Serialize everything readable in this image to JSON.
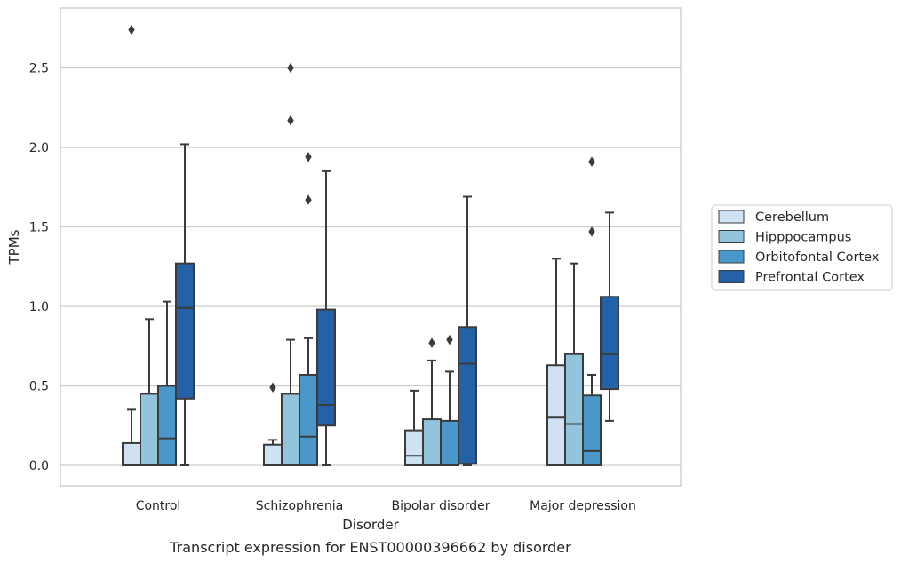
{
  "chart_data": {
    "type": "box",
    "caption": "Transcript expression for ENST00000396662 by disorder",
    "xlabel": "Disorder",
    "ylabel": "TPMs",
    "ylim": [
      -0.13,
      2.88
    ],
    "yticks": [
      "0.0",
      "0.5",
      "1.0",
      "1.5",
      "2.0",
      "2.5"
    ],
    "grid": "horizontal",
    "legend_position": "right",
    "categories": [
      "Control",
      "Schizophrenia",
      "Bipolar disorder",
      "Major depression"
    ],
    "series": [
      {
        "name": "Cerebellum",
        "color": "#cfe1f2",
        "boxes": [
          {
            "whislo": 0.0,
            "q1": 0.0,
            "med": 0.0,
            "q3": 0.14,
            "whishi": 0.35,
            "fliers": [
              2.74
            ]
          },
          {
            "whislo": 0.0,
            "q1": 0.0,
            "med": 0.0,
            "q3": 0.13,
            "whishi": 0.16,
            "fliers": [
              0.49
            ]
          },
          {
            "whislo": 0.0,
            "q1": 0.0,
            "med": 0.06,
            "q3": 0.22,
            "whishi": 0.47,
            "fliers": []
          },
          {
            "whislo": 0.0,
            "q1": 0.0,
            "med": 0.3,
            "q3": 0.63,
            "whishi": 1.3,
            "fliers": []
          }
        ]
      },
      {
        "name": "Hipppocampus",
        "color": "#93c4de",
        "boxes": [
          {
            "whislo": 0.0,
            "q1": 0.0,
            "med": 0.0,
            "q3": 0.45,
            "whishi": 0.92,
            "fliers": []
          },
          {
            "whislo": 0.0,
            "q1": 0.0,
            "med": 0.0,
            "q3": 0.45,
            "whishi": 0.79,
            "fliers": [
              2.17,
              2.5
            ]
          },
          {
            "whislo": 0.0,
            "q1": 0.0,
            "med": 0.0,
            "q3": 0.29,
            "whishi": 0.66,
            "fliers": [
              0.77
            ]
          },
          {
            "whislo": 0.0,
            "q1": 0.0,
            "med": 0.26,
            "q3": 0.7,
            "whishi": 1.27,
            "fliers": []
          }
        ]
      },
      {
        "name": "Orbitofontal Cortex",
        "color": "#4a98c9",
        "boxes": [
          {
            "whislo": 0.0,
            "q1": 0.0,
            "med": 0.17,
            "q3": 0.5,
            "whishi": 1.03,
            "fliers": []
          },
          {
            "whislo": 0.0,
            "q1": 0.0,
            "med": 0.18,
            "q3": 0.57,
            "whishi": 0.8,
            "fliers": [
              1.67,
              1.94
            ]
          },
          {
            "whislo": 0.0,
            "q1": 0.0,
            "med": 0.0,
            "q3": 0.28,
            "whishi": 0.59,
            "fliers": [
              0.79
            ]
          },
          {
            "whislo": 0.0,
            "q1": 0.0,
            "med": 0.09,
            "q3": 0.44,
            "whishi": 0.57,
            "fliers": [
              1.47,
              1.91
            ]
          }
        ]
      },
      {
        "name": "Prefrontal Cortex",
        "color": "#2362a6",
        "boxes": [
          {
            "whislo": 0.0,
            "q1": 0.42,
            "med": 0.99,
            "q3": 1.27,
            "whishi": 2.02,
            "fliers": []
          },
          {
            "whislo": 0.0,
            "q1": 0.25,
            "med": 0.38,
            "q3": 0.98,
            "whishi": 1.85,
            "fliers": []
          },
          {
            "whislo": 0.0,
            "q1": 0.01,
            "med": 0.64,
            "q3": 0.87,
            "whishi": 1.69,
            "fliers": []
          },
          {
            "whislo": 0.28,
            "q1": 0.48,
            "med": 0.7,
            "q3": 1.06,
            "whishi": 1.59,
            "fliers": []
          }
        ]
      }
    ]
  }
}
